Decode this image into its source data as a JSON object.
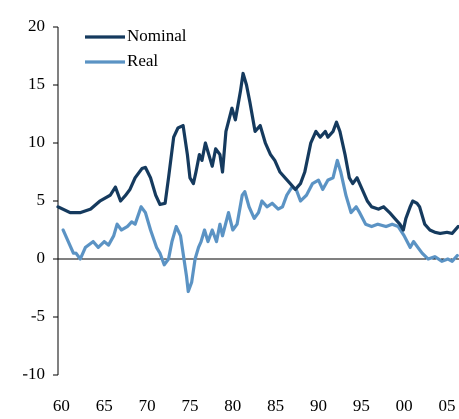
{
  "chart_data": {
    "type": "line",
    "xlim": [
      1959.6,
      2006.4
    ],
    "xticks": [
      {
        "value": 1960,
        "label": "60"
      },
      {
        "value": 1965,
        "label": "65"
      },
      {
        "value": 1970,
        "label": "70"
      },
      {
        "value": 1975,
        "label": "75"
      },
      {
        "value": 1980,
        "label": "80"
      },
      {
        "value": 1985,
        "label": "85"
      },
      {
        "value": 1990,
        "label": "90"
      },
      {
        "value": 1995,
        "label": "95"
      },
      {
        "value": 2000,
        "label": "00"
      },
      {
        "value": 2005,
        "label": "05"
      }
    ],
    "ylim": [
      -10,
      20
    ],
    "yticks": [
      -10,
      -5,
      0,
      5,
      10,
      15,
      20
    ],
    "legend": "top-left",
    "series": [
      {
        "name": "Nominal",
        "color": "#153a5e",
        "x": [
          1959.6,
          1961.0,
          1962.2,
          1963.4,
          1964.5,
          1965.7,
          1966.3,
          1966.9,
          1967.5,
          1968.0,
          1968.6,
          1969.4,
          1969.8,
          1970.4,
          1971.0,
          1971.5,
          1972.1,
          1972.5,
          1973.1,
          1973.6,
          1974.2,
          1974.7,
          1975.0,
          1975.4,
          1975.7,
          1976.1,
          1976.4,
          1976.8,
          1977.2,
          1977.6,
          1978.0,
          1978.5,
          1978.8,
          1979.2,
          1979.9,
          1980.3,
          1980.9,
          1981.2,
          1981.6,
          1982.0,
          1982.6,
          1983.2,
          1983.8,
          1984.4,
          1984.9,
          1985.5,
          1986.1,
          1986.7,
          1987.3,
          1987.9,
          1988.4,
          1989.1,
          1989.7,
          1990.2,
          1990.8,
          1991.1,
          1991.7,
          1992.1,
          1992.5,
          1993.1,
          1993.6,
          1994.0,
          1994.5,
          1995.1,
          1995.7,
          1996.2,
          1997.0,
          1997.6,
          1998.3,
          1998.9,
          1999.5,
          1999.9,
          2000.2,
          2000.7,
          2001.0,
          2001.5,
          2001.8,
          2002.4,
          2003.0,
          2003.6,
          2004.2,
          2005.0,
          2005.6,
          2006.3
        ],
        "values": [
          4.5,
          4.0,
          4.0,
          4.3,
          5.0,
          5.5,
          6.2,
          5.0,
          5.5,
          6.0,
          7.0,
          7.8,
          7.9,
          7.0,
          5.5,
          4.7,
          4.8,
          7.0,
          10.5,
          11.3,
          11.5,
          9.0,
          7.0,
          6.5,
          7.5,
          9.0,
          8.5,
          10.0,
          9.0,
          8.0,
          9.5,
          9.0,
          7.5,
          11.0,
          13.0,
          12.0,
          14.5,
          16.0,
          15.0,
          13.5,
          11.0,
          11.5,
          10.0,
          9.0,
          8.5,
          7.5,
          7.0,
          6.5,
          6.0,
          6.5,
          7.5,
          10.0,
          11.0,
          10.5,
          11.0,
          10.5,
          11.0,
          11.8,
          11.0,
          9.0,
          7.0,
          6.5,
          7.0,
          6.0,
          5.0,
          4.5,
          4.3,
          4.5,
          4.0,
          3.5,
          3.0,
          2.5,
          3.5,
          4.5,
          5.0,
          4.8,
          4.5,
          3.0,
          2.5,
          2.3,
          2.2,
          2.3,
          2.2,
          2.8
        ]
      },
      {
        "name": "Real",
        "color": "#5b93c4",
        "x": [
          1960.2,
          1960.8,
          1961.4,
          1961.7,
          1962.2,
          1962.8,
          1963.7,
          1964.3,
          1965.0,
          1965.5,
          1966.1,
          1966.5,
          1967.0,
          1967.7,
          1968.2,
          1968.6,
          1969.3,
          1969.8,
          1970.4,
          1971.1,
          1971.5,
          1972.0,
          1972.5,
          1972.9,
          1973.4,
          1973.9,
          1974.2,
          1974.6,
          1974.8,
          1975.2,
          1975.6,
          1976.0,
          1976.3,
          1976.7,
          1977.1,
          1977.6,
          1978.1,
          1978.5,
          1978.8,
          1979.5,
          1980.0,
          1980.5,
          1981.1,
          1981.4,
          1981.9,
          1982.5,
          1983.0,
          1983.4,
          1984.0,
          1984.6,
          1985.3,
          1985.8,
          1986.3,
          1986.9,
          1987.4,
          1987.9,
          1988.6,
          1989.3,
          1990.0,
          1990.5,
          1991.1,
          1991.7,
          1992.2,
          1992.6,
          1993.2,
          1993.8,
          1994.4,
          1994.8,
          1995.5,
          1996.2,
          1996.9,
          1997.9,
          1998.6,
          1999.3,
          2000.0,
          2000.7,
          2001.1,
          2001.6,
          2002.1,
          2002.8,
          2003.6,
          2004.4,
          2005.1,
          2005.6,
          2006.2
        ],
        "values": [
          2.5,
          1.5,
          0.5,
          0.5,
          0.0,
          1.0,
          1.5,
          1.0,
          1.5,
          1.2,
          2.0,
          3.0,
          2.5,
          2.8,
          3.2,
          3.0,
          4.5,
          4.0,
          2.5,
          1.0,
          0.5,
          -0.5,
          0.0,
          1.5,
          2.8,
          2.0,
          0.5,
          -1.5,
          -2.8,
          -2.0,
          0.0,
          1.0,
          1.5,
          2.5,
          1.5,
          2.5,
          1.5,
          3.0,
          2.0,
          4.0,
          2.5,
          3.0,
          5.5,
          5.8,
          4.5,
          3.5,
          4.0,
          5.0,
          4.5,
          4.8,
          4.3,
          4.5,
          5.5,
          6.2,
          6.0,
          5.0,
          5.5,
          6.5,
          6.8,
          6.0,
          6.8,
          7.0,
          8.5,
          7.5,
          5.5,
          4.0,
          4.5,
          4.0,
          3.0,
          2.8,
          3.0,
          2.8,
          3.0,
          2.8,
          2.0,
          1.0,
          1.5,
          1.0,
          0.5,
          0.0,
          0.2,
          -0.2,
          0.0,
          -0.2,
          0.3
        ]
      }
    ]
  }
}
